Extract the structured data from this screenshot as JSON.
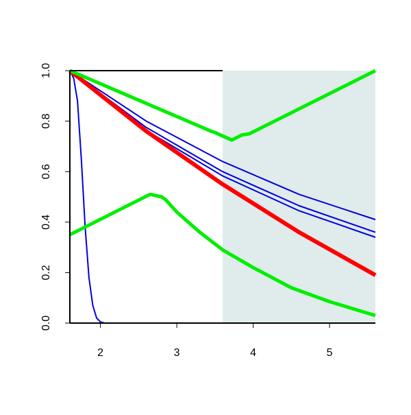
{
  "chart_data": {
    "type": "line",
    "xlim": [
      1.6,
      5.6
    ],
    "ylim": [
      0,
      1
    ],
    "xticks": [
      2,
      3,
      4,
      5
    ],
    "yticks": [
      {
        "value": 0,
        "label": "0.0"
      },
      0.2,
      0.4,
      0.6,
      0.8,
      {
        "value": 1,
        "label": "1.0"
      }
    ],
    "shaded_region": {
      "x": [
        3.6,
        5.6
      ],
      "color": "#dfeceb"
    },
    "series": [
      {
        "color": "#0000dd",
        "width": 2,
        "x": [
          1.6,
          1.65,
          1.7,
          1.75,
          1.8,
          1.85,
          1.9,
          1.95,
          2.0,
          2.05,
          5.6
        ],
        "values": [
          1,
          0.97,
          0.88,
          0.65,
          0.38,
          0.18,
          0.07,
          0.02,
          0.005,
          0,
          0
        ]
      },
      {
        "color": "#0000dd",
        "width": 2,
        "x": [
          1.6,
          2.6,
          3.6,
          4.6,
          5.6
        ],
        "values": [
          1,
          0.8,
          0.64,
          0.51,
          0.41
        ]
      },
      {
        "color": "#0000dd",
        "width": 2,
        "x": [
          1.6,
          2.6,
          3.6,
          4.6,
          5.6
        ],
        "values": [
          1,
          0.775,
          0.6,
          0.465,
          0.36
        ]
      },
      {
        "color": "#0000dd",
        "width": 2,
        "x": [
          1.6,
          2.6,
          3.6,
          4.6,
          5.6
        ],
        "values": [
          1,
          0.763,
          0.583,
          0.445,
          0.34
        ]
      },
      {
        "color": "#ff0000",
        "width": 6,
        "x": [
          1.6,
          2.6,
          3.6,
          4.6,
          5.6
        ],
        "values": [
          1,
          0.76,
          0.55,
          0.36,
          0.19
        ]
      },
      {
        "color": "#00ee00",
        "width": 5,
        "x": [
          1.6,
          3.45,
          3.5,
          3.72,
          3.85,
          3.95,
          5.6
        ],
        "values": [
          1,
          0.76,
          0.755,
          0.725,
          0.745,
          0.75,
          1
        ]
      },
      {
        "color": "#00ee00",
        "width": 5,
        "x": [
          1.6,
          2.65,
          2.8,
          2.85,
          3.0,
          3.3,
          3.6,
          4.0,
          4.5,
          5.0,
          5.6
        ],
        "values": [
          0.35,
          0.51,
          0.5,
          0.49,
          0.44,
          0.36,
          0.29,
          0.22,
          0.14,
          0.085,
          0.03
        ]
      }
    ]
  }
}
